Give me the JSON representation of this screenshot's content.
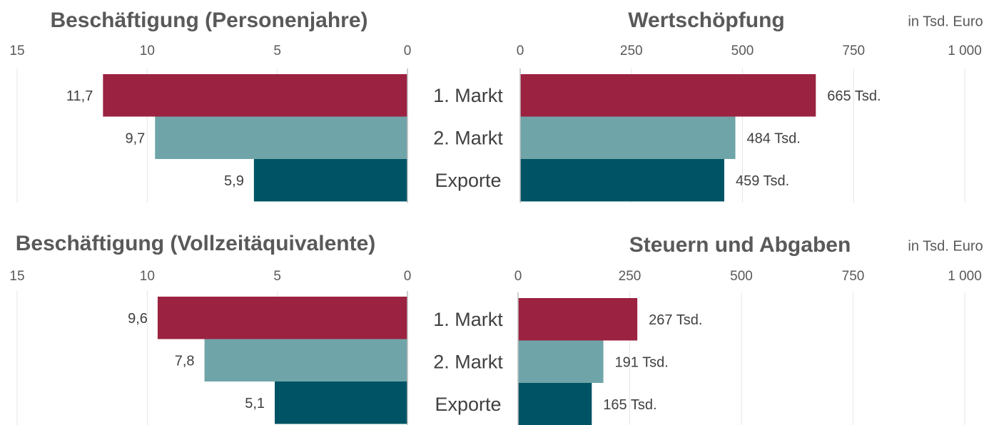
{
  "chart_data": [
    {
      "type": "bar",
      "orientation": "horizontal",
      "title": "Beschäftigung (Personenjahre)",
      "values": [
        11.7,
        9.7,
        5.9
      ],
      "value_labels": [
        "11,7",
        "9,7",
        "5,9"
      ],
      "colors": [
        "#9b2241",
        "#6fa5a8",
        "#005365"
      ],
      "xlim": [
        0,
        15
      ],
      "xticks": [
        0,
        5,
        10,
        15
      ],
      "xreversed": true,
      "grid": true
    },
    {
      "type": "bar",
      "orientation": "horizontal",
      "title": "Wertschöpfung",
      "unit": "in Tsd. Euro",
      "categories": [
        "1. Markt",
        "2. Markt",
        "Exporte"
      ],
      "values": [
        665,
        484,
        459
      ],
      "value_labels": [
        "665 Tsd.",
        "484 Tsd.",
        "459 Tsd."
      ],
      "colors": [
        "#9b2241",
        "#6fa5a8",
        "#005365"
      ],
      "xlim": [
        0,
        1000
      ],
      "xticks": [
        0,
        250,
        500,
        750,
        {
          "value": 1000,
          "label": "1 000"
        }
      ],
      "xreversed": false,
      "grid": true
    },
    {
      "type": "bar",
      "orientation": "horizontal",
      "title": "Beschäftigung (Vollzeitäquivalente)",
      "values": [
        9.6,
        7.8,
        5.1
      ],
      "value_labels": [
        "9,6",
        "7,8",
        "5,1"
      ],
      "colors": [
        "#9b2241",
        "#6fa5a8",
        "#005365"
      ],
      "xlim": [
        0,
        15
      ],
      "xticks": [
        0,
        5,
        10,
        15
      ],
      "xreversed": true,
      "grid": true
    },
    {
      "type": "bar",
      "orientation": "horizontal",
      "title": "Steuern und Abgaben",
      "unit": "in Tsd. Euro",
      "categories": [
        "1. Markt",
        "2. Markt",
        "Exporte"
      ],
      "values": [
        267,
        191,
        165
      ],
      "value_labels": [
        "267 Tsd.",
        "191 Tsd.",
        "165 Tsd."
      ],
      "colors": [
        "#9b2241",
        "#6fa5a8",
        "#005365"
      ],
      "xlim": [
        0,
        1000
      ],
      "xticks": [
        0,
        250,
        500,
        750,
        {
          "value": 1000,
          "label": "1 000"
        }
      ],
      "xreversed": false,
      "grid": true
    }
  ]
}
